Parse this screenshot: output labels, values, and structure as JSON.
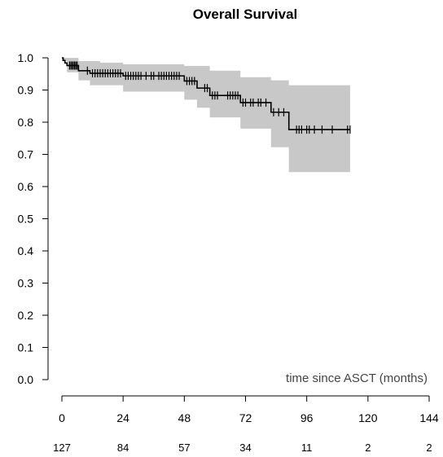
{
  "chart_data": {
    "type": "line",
    "title": "Overall Survival",
    "xlabel": "time since ASCT (months)",
    "ylabel": "",
    "xlim": [
      0,
      144
    ],
    "ylim": [
      0,
      1
    ],
    "x_ticks": [
      0,
      24,
      48,
      72,
      96,
      120,
      144
    ],
    "y_ticks": [
      0.0,
      0.1,
      0.2,
      0.3,
      0.4,
      0.5,
      0.6,
      0.7,
      0.8,
      0.9,
      1.0
    ],
    "y_tick_labels": [
      "0.0",
      "0.1",
      "0.2",
      "0.3",
      "0.4",
      "0.5",
      "0.6",
      "0.7",
      "0.8",
      "0.9",
      "1.0"
    ],
    "number_at_risk": [
      {
        "x": 0,
        "n": "127"
      },
      {
        "x": 24,
        "n": "84"
      },
      {
        "x": 48,
        "n": "57"
      },
      {
        "x": 72,
        "n": "34"
      },
      {
        "x": 96,
        "n": "11"
      },
      {
        "x": 120,
        "n": "2"
      },
      {
        "x": 144,
        "n": "2"
      }
    ],
    "series": [
      {
        "step_points": [
          [
            0,
            1.0
          ],
          [
            0.5,
            0.992
          ],
          [
            1.2,
            0.984
          ],
          [
            2,
            0.976
          ],
          [
            6.5,
            0.96
          ],
          [
            11,
            0.952
          ],
          [
            24,
            0.944
          ],
          [
            48,
            0.928
          ],
          [
            53,
            0.906
          ],
          [
            58,
            0.883
          ],
          [
            70,
            0.861
          ],
          [
            82,
            0.831
          ],
          [
            89,
            0.777
          ],
          [
            113,
            0.777
          ]
        ],
        "ci_upper": [
          [
            0,
            1.0
          ],
          [
            6.5,
            0.99
          ],
          [
            15,
            0.985
          ],
          [
            24,
            0.98
          ],
          [
            48,
            0.975
          ],
          [
            58,
            0.96
          ],
          [
            70,
            0.94
          ],
          [
            82,
            0.93
          ],
          [
            89,
            0.915
          ],
          [
            113,
            0.915
          ]
        ],
        "ci_lower": [
          [
            0,
            0.99
          ],
          [
            2,
            0.955
          ],
          [
            6.5,
            0.93
          ],
          [
            11,
            0.915
          ],
          [
            24,
            0.895
          ],
          [
            48,
            0.87
          ],
          [
            53,
            0.845
          ],
          [
            58,
            0.815
          ],
          [
            70,
            0.78
          ],
          [
            82,
            0.722
          ],
          [
            89,
            0.645
          ],
          [
            113,
            0.645
          ]
        ],
        "censored_x": [
          3,
          3.5,
          4,
          4.5,
          5,
          5.5,
          6,
          10,
          12,
          13,
          14,
          15,
          16,
          17,
          18,
          19,
          20,
          21,
          22,
          23,
          25,
          26,
          27,
          28,
          29,
          30,
          31,
          33,
          35,
          36,
          38,
          39,
          40,
          41,
          42,
          43,
          44,
          45,
          46,
          49,
          50,
          51,
          52,
          56,
          57,
          59,
          60,
          61,
          65,
          66,
          67,
          68,
          69,
          71,
          72,
          74,
          75,
          77,
          78,
          80,
          83,
          85,
          87,
          92,
          93,
          94,
          96,
          97,
          99,
          102,
          106,
          112,
          113
        ]
      }
    ],
    "ci_color": "#c8c8c8",
    "line_color": "#000000",
    "grid": false,
    "legend": "none"
  }
}
